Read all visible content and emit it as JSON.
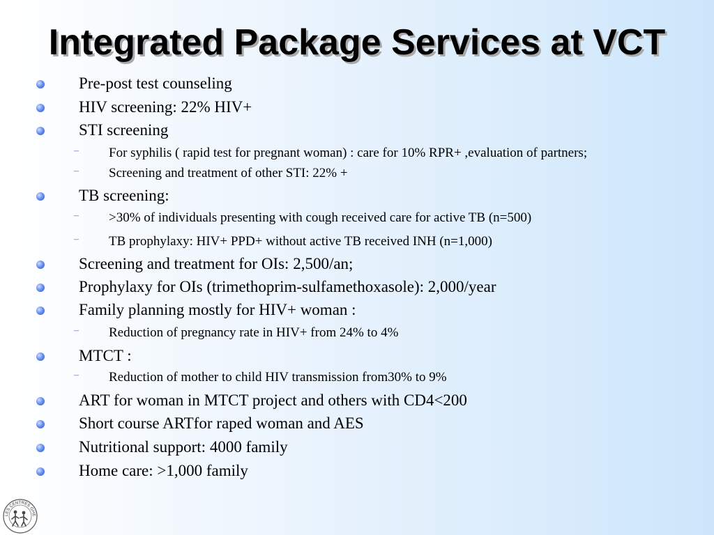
{
  "slide": {
    "title": "Integrated Package Services at VCT",
    "items": [
      {
        "level": 1,
        "text": "Pre-post test counseling"
      },
      {
        "level": 1,
        "text": "HIV screening: 22% HIV+"
      },
      {
        "level": 1,
        "text": "STI screening"
      },
      {
        "level": 2,
        "text": "For syphilis ( rapid test for pregnant woman) : care for 10% RPR+ ,evaluation of partners;"
      },
      {
        "level": 2,
        "text": "Screening and treatment of other STI: 22% +"
      },
      {
        "level": 1,
        "text": "TB screening:"
      },
      {
        "level": 2,
        "text": ">30% of individuals presenting with cough received care for active TB (n=500)"
      },
      {
        "level": 2,
        "text": "TB prophylaxy: HIV+ PPD+ without active TB  received  INH (n=1,000)"
      },
      {
        "level": 1,
        "text": "Screening and treatment for OIs: 2,500/an;"
      },
      {
        "level": 1,
        "text": "Prophylaxy for OIs (trimethoprim-sulfamethoxasole): 2,000/year"
      },
      {
        "level": 1,
        "text": "Family planning mostly for HIV+ woman :"
      },
      {
        "level": 2,
        "text": "Reduction of pregnancy rate in HIV+ from 24% to 4%"
      },
      {
        "level": 1,
        "text": "MTCT :"
      },
      {
        "level": 2,
        "text": "Reduction of mother to child HIV transmission from30% to 9%"
      },
      {
        "level": 1,
        "text": "ART for woman in MTCT project and others with CD4<200"
      },
      {
        "level": 1,
        "text": "Short course ARTfor raped woman and  AES"
      },
      {
        "level": 1,
        "text": "Nutritional support: 4000 family"
      },
      {
        "level": 1,
        "text": "Home care: >1,000 family"
      }
    ]
  },
  "logo": {
    "text": "LES CENTRES GHESKIO"
  },
  "colors": {
    "bullet": "#4a72e0",
    "dash": "#5577cc",
    "background_right": "#cde6fb"
  }
}
